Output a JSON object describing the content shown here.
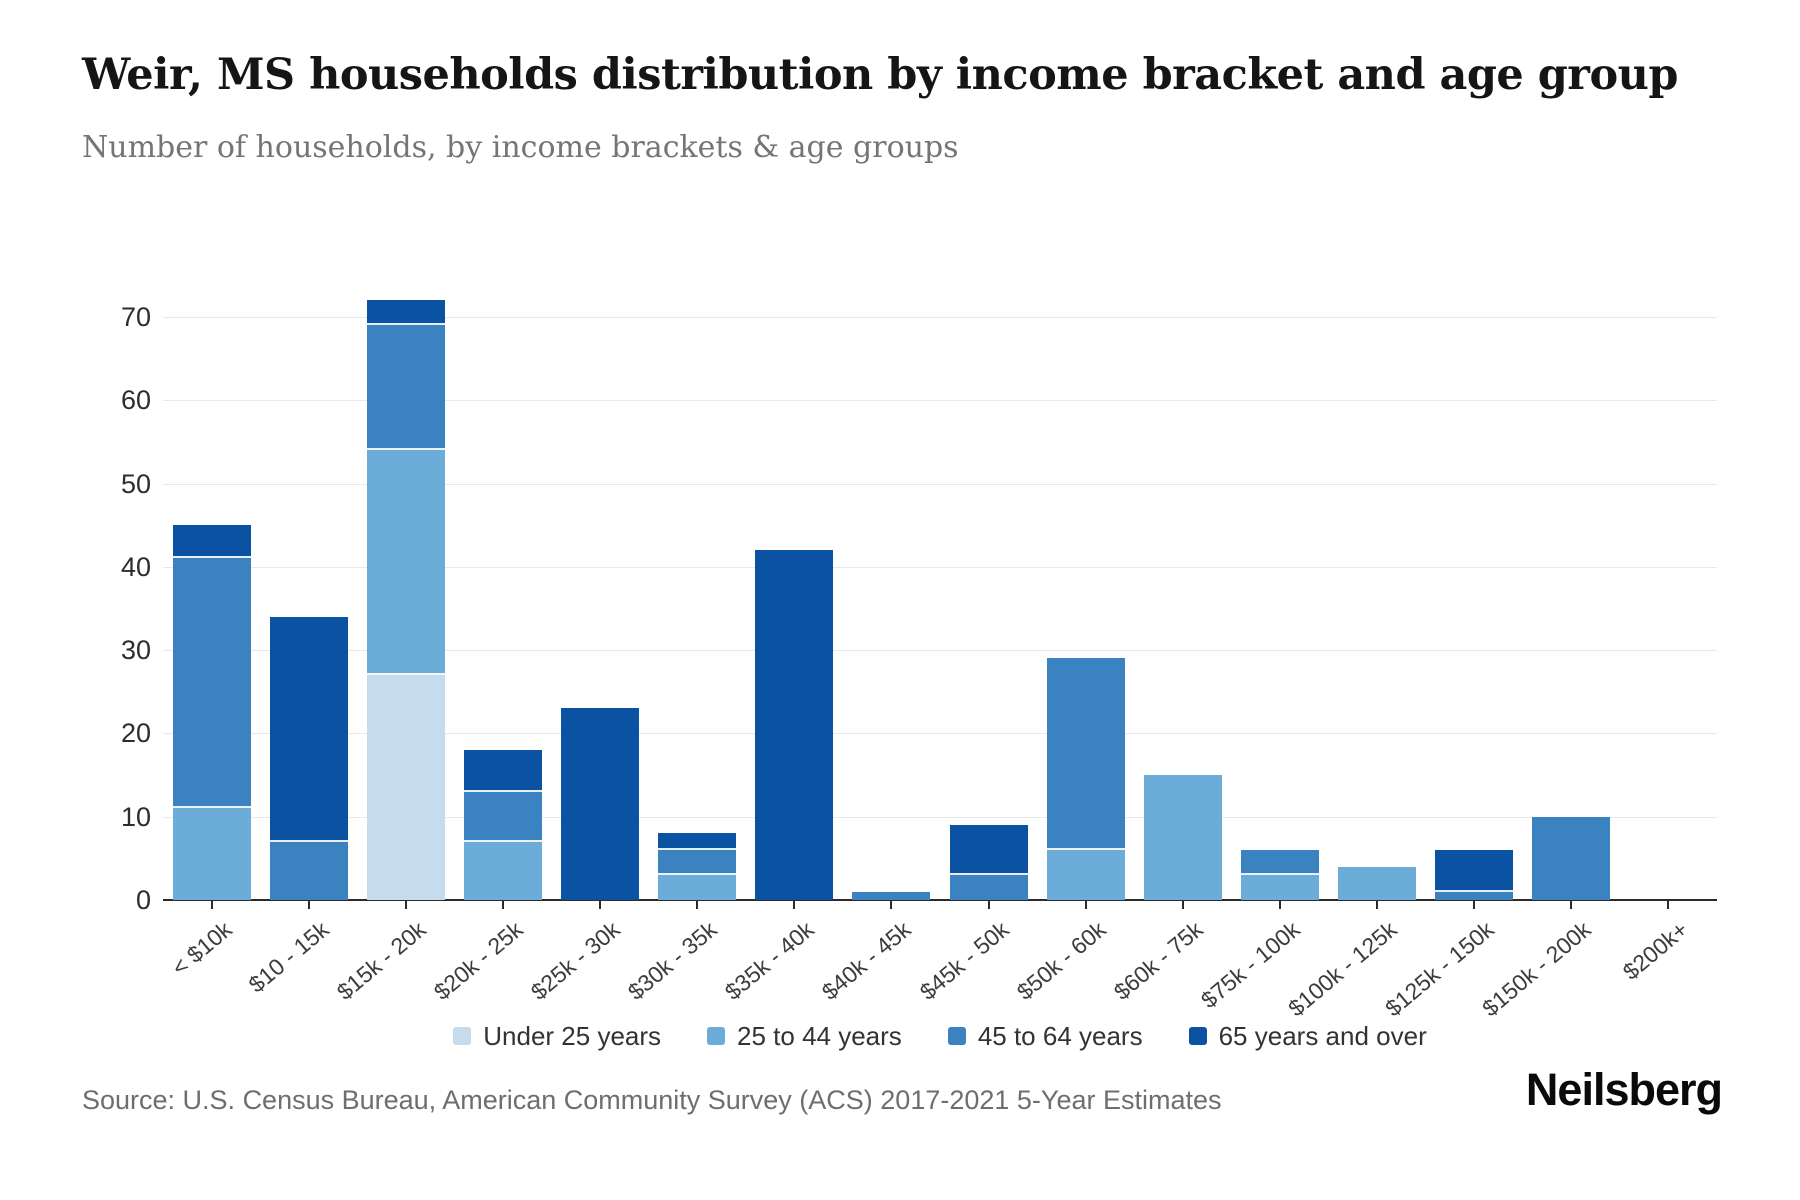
{
  "header": {
    "title": "Weir, MS households distribution by income bracket and age group",
    "subtitle": "Number of households, by income brackets & age groups"
  },
  "chart_data": {
    "type": "bar",
    "stacked": true,
    "title": "Weir, MS households distribution by income bracket and age group",
    "xlabel": "",
    "ylabel": "",
    "categories": [
      "< $10k",
      "$10 - 15k",
      "$15k - 20k",
      "$20k - 25k",
      "$25k - 30k",
      "$30k - 35k",
      "$35k - 40k",
      "$40k - 45k",
      "$45k - 50k",
      "$50k - 60k",
      "$60k - 75k",
      "$75k - 100k",
      "$100k - 125k",
      "$125k - 150k",
      "$150k - 200k",
      "$200k+"
    ],
    "series": [
      {
        "name": "Under 25 years",
        "color": "#c6dbec",
        "values": [
          0,
          0,
          27,
          0,
          0,
          0,
          0,
          0,
          0,
          0,
          0,
          0,
          0,
          0,
          0,
          0
        ]
      },
      {
        "name": "25 to 44 years",
        "color": "#6bacd8",
        "values": [
          11,
          0,
          27,
          7,
          0,
          3,
          0,
          0,
          0,
          6,
          15,
          3,
          4,
          0,
          0,
          0
        ]
      },
      {
        "name": "45 to 64 years",
        "color": "#3a82c0",
        "values": [
          30,
          7,
          15,
          6,
          0,
          3,
          0,
          1,
          3,
          23,
          0,
          3,
          0,
          1,
          10,
          0
        ]
      },
      {
        "name": "65 years and over",
        "color": "#0b53a2",
        "values": [
          4,
          27,
          3,
          5,
          23,
          2,
          42,
          0,
          6,
          0,
          0,
          0,
          0,
          5,
          0,
          0
        ]
      }
    ],
    "totals": [
      45,
      34,
      72,
      18,
      23,
      8,
      42,
      1,
      9,
      29,
      15,
      6,
      4,
      6,
      10,
      0
    ],
    "ylim": [
      0,
      75
    ],
    "yticks": [
      0,
      10,
      20,
      30,
      40,
      50,
      60,
      70
    ],
    "grid": true,
    "legend_position": "bottom",
    "colors": {
      "grid": "#e9e9e9",
      "axis": "#2b2b2b",
      "segment_separator": "#ffffff"
    }
  },
  "footer": {
    "source": "Source: U.S. Census Bureau, American Community Survey (ACS) 2017-2021 5-Year Estimates",
    "logo": "Neilsberg"
  }
}
